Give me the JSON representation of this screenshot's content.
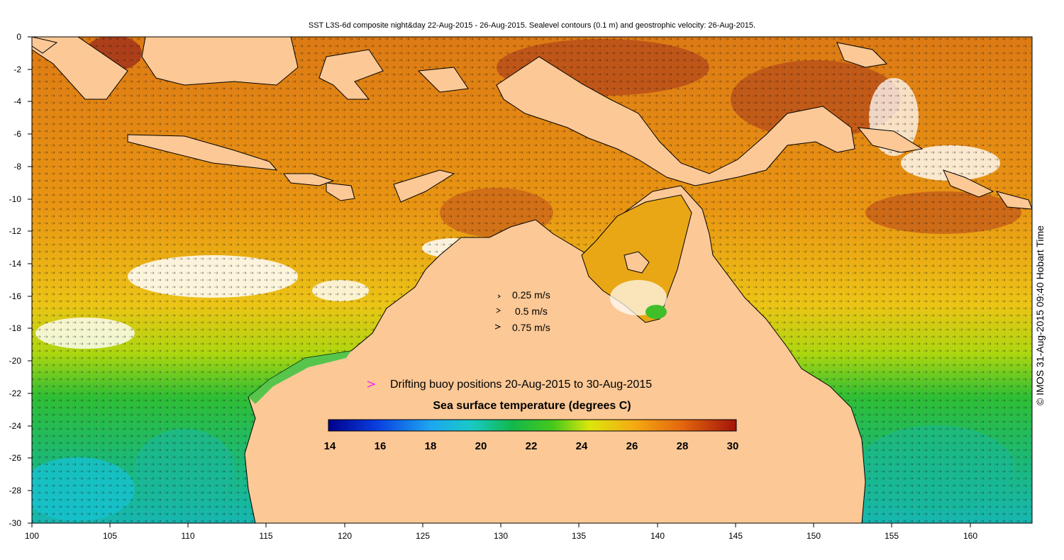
{
  "title": "SST L3S-6d composite night&day 22-Aug-2015 - 26-Aug-2015. Sealevel contours (0.1 m) and geostrophic velocity: 26-Aug-2015.",
  "credit": "© IMOS 31-Aug-2015 09:40 Hobart Time",
  "velocity_legend": [
    "0.25 m/s",
    "0.5 m/s",
    "0.75 m/s"
  ],
  "buoy_legend": "Drifting buoy positions 20-Aug-2015 to 30-Aug-2015",
  "colorbar": {
    "title": "Sea surface temperature (degrees C)",
    "min": 14,
    "max": 30,
    "ticks": [
      "14",
      "16",
      "18",
      "20",
      "22",
      "24",
      "26",
      "28",
      "30"
    ],
    "colors": [
      "#00008c",
      "#0a3fe0",
      "#1da6f0",
      "#19c9c6",
      "#12b84c",
      "#45c81b",
      "#dce60c",
      "#f5a913",
      "#e2640d",
      "#a3140a"
    ]
  },
  "axes": {
    "x_ticks": [
      "100",
      "105",
      "110",
      "115",
      "120",
      "125",
      "130",
      "135",
      "140",
      "145",
      "150",
      "155",
      "160"
    ],
    "y_ticks": [
      "0",
      "-2",
      "-4",
      "-6",
      "-8",
      "-10",
      "-12",
      "-14",
      "-16",
      "-18",
      "-20",
      "-22",
      "-24",
      "-26",
      "-28",
      "-30"
    ],
    "x_range": [
      100,
      164
    ],
    "y_range": [
      -30,
      0
    ]
  },
  "colors": {
    "land": "#fbc896",
    "warm": "#e27f12",
    "hot": "#a3341b",
    "mid": "#f2b716",
    "yellow": "#d4dc0f",
    "green": "#22bb2b",
    "cool": "#18c4c4",
    "buoy": "#ff00ff"
  }
}
